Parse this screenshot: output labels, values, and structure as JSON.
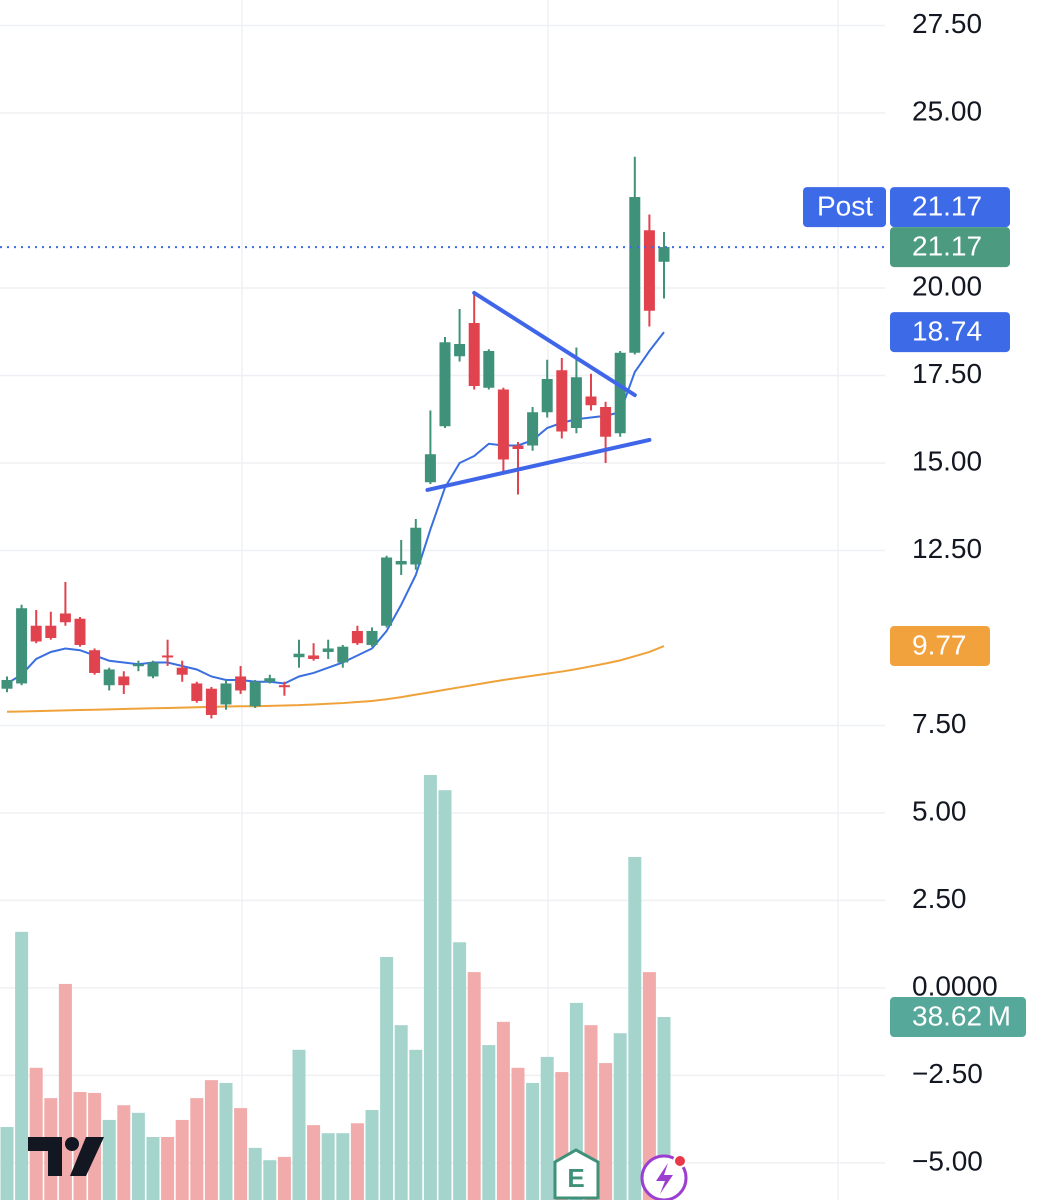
{
  "chart_data": {
    "type": "candlestick",
    "open": [
      8.55,
      8.7,
      10.35,
      10.35,
      10.7,
      10.55,
      9.65,
      8.65,
      8.9,
      9.2,
      8.9,
      9.5,
      9.15,
      8.7,
      8.55,
      8.1,
      8.9,
      8.05,
      8.75,
      8.65,
      9.45,
      9.5,
      9.6,
      9.3,
      10.2,
      9.8,
      10.35,
      12.1,
      12.1,
      14.45,
      16.05,
      18.05,
      19.0,
      17.15,
      17.1,
      15.5,
      15.5,
      16.45,
      17.65,
      16.0,
      16.9,
      16.6,
      15.85,
      18.15,
      21.65,
      20.75
    ],
    "high": [
      8.9,
      10.95,
      10.8,
      10.75,
      11.6,
      10.6,
      9.7,
      9.15,
      9.05,
      9.35,
      9.35,
      9.95,
      9.35,
      8.75,
      8.6,
      8.8,
      9.2,
      8.8,
      8.95,
      8.75,
      9.95,
      9.85,
      9.95,
      9.8,
      10.35,
      10.3,
      12.35,
      12.8,
      13.4,
      16.5,
      18.6,
      19.4,
      19.9,
      18.25,
      17.15,
      15.6,
      16.6,
      17.95,
      18.0,
      18.3,
      17.55,
      16.75,
      18.2,
      23.75,
      22.1,
      21.6
    ],
    "low": [
      8.45,
      8.65,
      9.85,
      9.95,
      10.35,
      9.75,
      8.95,
      8.5,
      8.4,
      9.05,
      8.85,
      9.2,
      8.75,
      8.15,
      7.7,
      7.95,
      8.4,
      8.0,
      8.7,
      8.35,
      9.15,
      9.35,
      9.4,
      9.15,
      9.8,
      9.75,
      10.3,
      11.8,
      11.95,
      14.4,
      16.0,
      17.9,
      17.1,
      17.1,
      14.7,
      14.1,
      15.35,
      16.3,
      15.7,
      15.85,
      16.5,
      15.0,
      15.75,
      18.1,
      18.9,
      19.7
    ],
    "close": [
      8.8,
      10.85,
      9.9,
      10.0,
      10.45,
      9.8,
      9.0,
      9.1,
      8.65,
      9.25,
      9.3,
      9.45,
      8.95,
      8.2,
      7.8,
      8.7,
      8.5,
      8.75,
      8.85,
      8.6,
      9.55,
      9.4,
      9.7,
      9.75,
      9.85,
      10.2,
      12.3,
      12.2,
      13.15,
      15.25,
      18.45,
      18.4,
      17.2,
      18.2,
      15.1,
      15.4,
      16.45,
      17.4,
      15.9,
      17.45,
      16.65,
      15.75,
      18.15,
      22.6,
      19.35,
      21.17
    ],
    "volume": [
      15.4,
      56.6,
      27.9,
      21.5,
      45.6,
      22.8,
      22.6,
      16.9,
      20.0,
      18.4,
      13.3,
      13.3,
      16.9,
      21.5,
      25.3,
      24.7,
      19.4,
      11.0,
      8.4,
      9.1,
      31.7,
      15.8,
      14.1,
      14.1,
      16.2,
      19.0,
      51.3,
      36.9,
      31.7,
      89.7,
      86.5,
      54.4,
      48.1,
      32.7,
      37.6,
      27.9,
      24.7,
      30.2,
      27.0,
      41.6,
      36.9,
      28.9,
      35.2,
      72.4,
      48.1,
      38.62
    ],
    "up_color": "#3f917a",
    "down_color": "#e0424e",
    "volume_up_color": "#a5d4cd",
    "volume_down_color": "#f1abab",
    "moving_averages": [
      {
        "color": "#3a6fe0",
        "values": [
          8.7,
          8.95,
          9.4,
          9.6,
          9.7,
          9.65,
          9.5,
          9.35,
          9.3,
          9.25,
          9.3,
          9.3,
          9.2,
          9.1,
          8.9,
          8.8,
          8.8,
          8.75,
          8.75,
          8.7,
          8.9,
          9.0,
          9.15,
          9.3,
          9.5,
          9.7,
          10.2,
          10.95,
          11.8,
          13.1,
          14.3,
          15.0,
          15.2,
          15.55,
          15.5,
          15.5,
          15.65,
          16.0,
          16.15,
          16.25,
          16.3,
          16.35,
          16.45,
          17.6,
          18.2,
          18.74
        ]
      },
      {
        "color": "#f0a23a",
        "values": [
          7.89,
          7.9,
          7.91,
          7.92,
          7.93,
          7.94,
          7.95,
          7.96,
          7.97,
          7.98,
          7.99,
          8.0,
          8.01,
          8.02,
          8.03,
          8.04,
          8.05,
          8.05,
          8.06,
          8.07,
          8.08,
          8.1,
          8.12,
          8.14,
          8.17,
          8.2,
          8.25,
          8.31,
          8.38,
          8.45,
          8.52,
          8.59,
          8.66,
          8.73,
          8.8,
          8.86,
          8.92,
          8.98,
          9.04,
          9.11,
          9.19,
          9.27,
          9.36,
          9.48,
          9.6,
          9.77
        ]
      }
    ],
    "trendlines": [
      {
        "color": "#3f66e8",
        "x": [
          32,
          43
        ],
        "y": [
          19.86,
          16.94
        ]
      },
      {
        "color": "#3f66e8",
        "x": [
          28.8,
          44
        ],
        "y": [
          14.23,
          15.66
        ]
      }
    ],
    "ylim": [
      -6.06,
      28.23
    ],
    "yticks": [
      {
        "value": 27.5,
        "label": "27.50"
      },
      {
        "value": 25,
        "label": "25.00"
      },
      {
        "value": 20,
        "label": "20.00"
      },
      {
        "value": 17.5,
        "label": "17.50"
      },
      {
        "value": 15,
        "label": "15.00"
      },
      {
        "value": 12.5,
        "label": "12.50"
      },
      {
        "value": 7.5,
        "label": "7.50"
      },
      {
        "value": 5,
        "label": "5.00"
      },
      {
        "value": 2.5,
        "label": "2.50"
      },
      {
        "value": 0,
        "label": "0.0000"
      },
      {
        "value": -2.5,
        "label": "−2.50"
      },
      {
        "value": -5,
        "label": "−5.00"
      }
    ],
    "grid": true,
    "post_label": {
      "name": "Post",
      "value": 21.17,
      "color": "#3d6be8"
    },
    "last_price": {
      "value": 21.17,
      "color": "#4c9a80"
    },
    "ma_fast_label": {
      "value": 18.74,
      "color": "#3d6be8"
    },
    "ma_slow_label": {
      "value": 9.77,
      "color": "#f2a23c"
    },
    "volume_label": {
      "value": 38.62,
      "label": "38.62 M",
      "color": "#55a89a"
    },
    "earnings_marker": "E"
  }
}
